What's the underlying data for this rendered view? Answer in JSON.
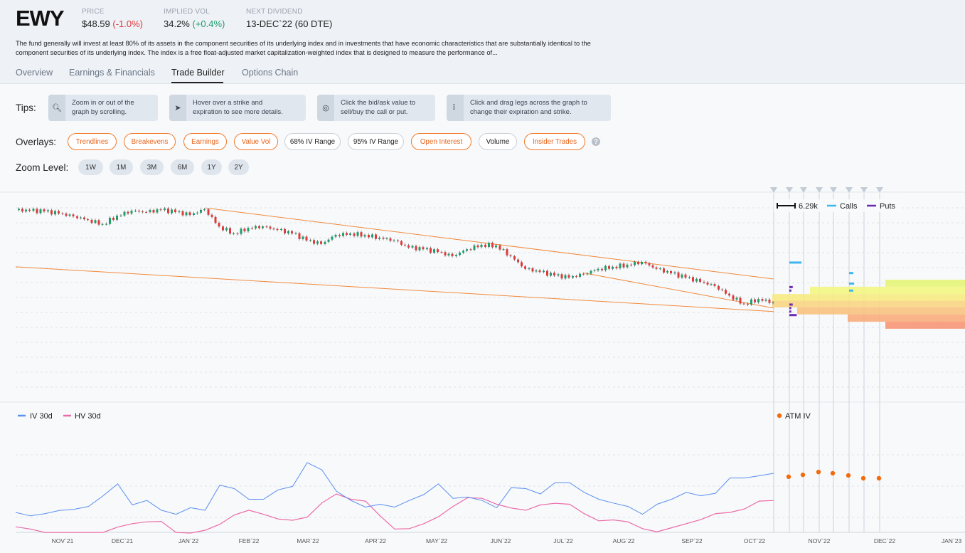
{
  "header": {
    "ticker": "EWY",
    "price_label": "PRICE",
    "price": "$48.59",
    "price_change": "(-1.0%)",
    "iv_label": "IMPLIED VOL",
    "iv": "34.2%",
    "iv_change": "(+0.4%)",
    "div_label": "NEXT DIVIDEND",
    "div": "13-DEC`22 (60 DTE)",
    "description": "The fund generally will invest at least 80% of its assets in the component securities of its underlying index and in investments that have economic characteristics that are substantially identical to the component securities of its underlying index. The index is a free float-adjusted market capitalization-weighted index that is designed to measure the performance of..."
  },
  "tabs": [
    {
      "label": "Overview"
    },
    {
      "label": "Earnings & Financials"
    },
    {
      "label": "Trade Builder",
      "active": true
    },
    {
      "label": "Options Chain"
    }
  ],
  "tips": {
    "label": "Tips:",
    "items": [
      {
        "icon": "zoom-icon",
        "text": "Zoom in or out of the graph by scrolling."
      },
      {
        "icon": "cursor-icon",
        "text": "Hover over a strike and expiration to see more details."
      },
      {
        "icon": "target-click-icon",
        "text": "Click the bid/ask value to sell/buy the call or put."
      },
      {
        "icon": "drag-handle-icon",
        "text": "Click and drag legs across the graph to change their expiration and strike."
      }
    ]
  },
  "overlays": {
    "label": "Overlays:",
    "items": [
      {
        "label": "Trendlines",
        "on": true
      },
      {
        "label": "Breakevens",
        "on": true
      },
      {
        "label": "Earnings",
        "on": true
      },
      {
        "label": "Value Vol",
        "on": true
      },
      {
        "label": "68% IV Range",
        "on": false
      },
      {
        "label": "95% IV Range",
        "on": false
      },
      {
        "label": "Open Interest",
        "on": true
      },
      {
        "label": "Volume",
        "on": false
      },
      {
        "label": "Insider Trades",
        "on": true
      }
    ],
    "help": "?"
  },
  "zoom": {
    "label": "Zoom Level:",
    "items": [
      "1W",
      "1M",
      "3M",
      "6M",
      "1Y",
      "2Y"
    ]
  },
  "colors": {
    "up": "#1f9d6b",
    "down": "#e03a3a",
    "trend": "#f28a3c",
    "calls": "#3fb6f0",
    "puts": "#6a2bb0",
    "iv": "#5b8ff0",
    "hv": "#ec6aa8",
    "atm": "#f26b0f"
  },
  "chart_data": {
    "type": "candlestick+line",
    "start_week": "2021-10-08",
    "x_tick_labels": [
      "NOV`21",
      "DEC`21",
      "JAN`22",
      "FEB`22",
      "MAR`22",
      "APR`22",
      "MAY`22",
      "JUN`22",
      "JUL`22",
      "AUG`22",
      "SEP`22",
      "OCT`22",
      "NOV`22",
      "DEC`22",
      "JAN`23"
    ],
    "price": {
      "weekly_close": [
        75.0,
        74.8,
        74.6,
        74.0,
        73.2,
        72.2,
        71.0,
        73.4,
        74.8,
        74.4,
        75.0,
        74.4,
        73.6,
        75.2,
        70.3,
        68.3,
        69.9,
        70.3,
        69.3,
        68.3,
        66.3,
        65.3,
        67.9,
        68.3,
        67.9,
        67.1,
        66.3,
        64.3,
        63.8,
        63.0,
        61.8,
        63.8,
        65.1,
        64.9,
        61.8,
        58.2,
        57.3,
        56.3,
        55.7,
        56.7,
        58.2,
        58.8,
        59.4,
        60.2,
        58.2,
        56.9,
        55.7,
        54.5,
        53.3,
        50.6,
        48.2,
        49.6,
        48.6
      ]
    },
    "trendlines": [
      {
        "from": [
          13,
          75.6
        ],
        "to": [
          52,
          55.3
        ]
      },
      {
        "from": [
          0,
          58.8
        ],
        "to": [
          52,
          46.0
        ]
      },
      {
        "from": [
          39,
          57.0
        ],
        "to": [
          52,
          47.0
        ]
      }
    ],
    "expected_range": [
      {
        "bands": [
          [
            51.0,
            49.1
          ],
          [
            49.1,
            47.2
          ]
        ]
      },
      {
        "bands": [
          [
            51.0,
            49.1
          ],
          [
            49.1,
            47.2
          ],
          [
            47.2,
            45.2
          ]
        ]
      },
      {
        "bands": [
          [
            53.1,
            51.0
          ],
          [
            51.0,
            49.1
          ],
          [
            49.1,
            47.2
          ],
          [
            47.2,
            45.2
          ]
        ]
      },
      {
        "bands": [
          [
            53.1,
            51.0
          ],
          [
            51.0,
            49.1
          ],
          [
            49.1,
            47.2
          ],
          [
            47.2,
            45.2
          ],
          [
            45.2,
            43.1
          ]
        ]
      },
      {
        "bands": [
          [
            55.1,
            53.1
          ],
          [
            53.1,
            51.0
          ],
          [
            51.0,
            49.1
          ],
          [
            49.1,
            47.2
          ],
          [
            47.2,
            45.2
          ],
          [
            45.2,
            43.1
          ],
          [
            43.1,
            41.1
          ]
        ]
      }
    ],
    "open_interest": {
      "scale_label": "6.29k",
      "calls_label": "Calls",
      "puts_label": "Puts",
      "calls": [
        {
          "exp": 1,
          "strike": 60,
          "oi": 4300
        },
        {
          "exp": 5,
          "strike": 57,
          "oi": 1500
        },
        {
          "exp": 5,
          "strike": 54,
          "oi": 1800
        },
        {
          "exp": 5,
          "strike": 52,
          "oi": 1500
        }
      ],
      "puts": [
        {
          "exp": 1,
          "strike": 53,
          "oi": 1200
        },
        {
          "exp": 1,
          "strike": 52,
          "oi": 700
        },
        {
          "exp": 1,
          "strike": 48,
          "oi": 1200
        },
        {
          "exp": 1,
          "strike": 47,
          "oi": 700
        },
        {
          "exp": 1,
          "strike": 46,
          "oi": 700
        },
        {
          "exp": 1,
          "strike": 45,
          "oi": 2600
        }
      ]
    },
    "vol": {
      "iv_label": "IV 30d",
      "hv_label": "HV 30d",
      "atm_label": "ATM IV",
      "ylim": [
        15,
        45
      ],
      "iv_30d": [
        21.6,
        20.5,
        21.2,
        22.2,
        22.6,
        23.5,
        26.9,
        30.7,
        24.0,
        25.4,
        22.3,
        21.0,
        23.1,
        22.3,
        30.3,
        29.2,
        25.8,
        25.8,
        28.8,
        29.9,
        37.5,
        35.2,
        28.4,
        25.4,
        23.3,
        24.2,
        23.3,
        25.4,
        27.3,
        30.7,
        26.1,
        26.5,
        25.4,
        23.1,
        29.5,
        29.2,
        27.5,
        31.1,
        31.1,
        28.0,
        25.8,
        24.6,
        23.5,
        21.0,
        24.2,
        25.8,
        28.0,
        26.9,
        27.7,
        32.6,
        32.6,
        33.3,
        34.1
      ],
      "hv_30d": [
        17.0,
        16.3,
        15.2,
        15.2,
        15.2,
        15.2,
        15.2,
        16.9,
        18.0,
        18.6,
        18.7,
        15.2,
        15.0,
        15.9,
        17.8,
        20.8,
        22.3,
        21.0,
        19.5,
        19.1,
        20.1,
        24.6,
        27.5,
        25.8,
        25.2,
        20.5,
        16.3,
        16.4,
        18.0,
        20.2,
        23.5,
        26.3,
        26.1,
        24.2,
        23.0,
        22.3,
        24.0,
        24.5,
        24.2,
        21.2,
        18.9,
        19.2,
        18.6,
        16.4,
        15.4,
        16.7,
        18.0,
        19.3,
        21.2,
        21.6,
        22.7,
        25.2,
        25.4
      ],
      "atm_iv": [
        33.0,
        33.6,
        34.5,
        34.1,
        33.4,
        32.5,
        32.5
      ]
    }
  }
}
